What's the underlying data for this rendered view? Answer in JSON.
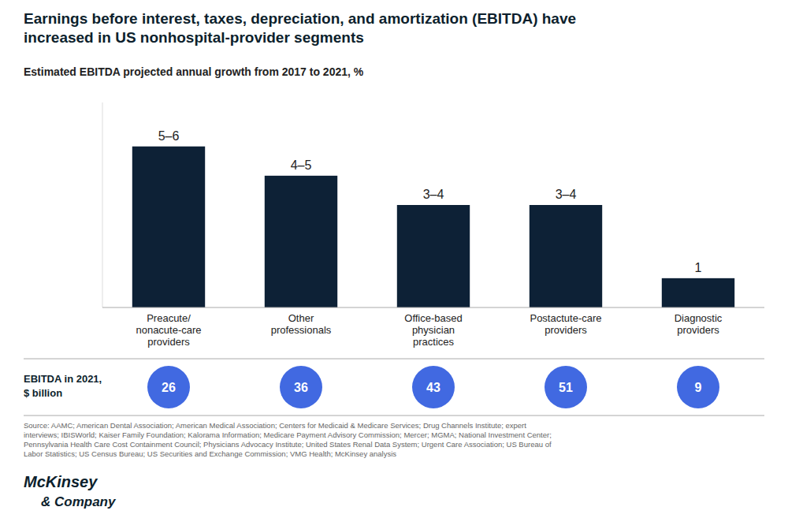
{
  "chart_data": {
    "type": "bar",
    "title": "Earnings before interest, taxes, depreciation, and amortization (EBITDA) have\nincreased in US nonhospital-provider segments",
    "subtitle": "Estimated EBITDA projected annual growth from 2017 to 2021, %",
    "categories": [
      "Preacute/\nnonacute-care\nproviders",
      "Other\nprofessionals",
      "Office-based\nphysician\npractices",
      "Postactute-care\nproviders",
      "Diagnostic\nproviders"
    ],
    "values": [
      5.5,
      4.5,
      3.5,
      3.5,
      1.0
    ],
    "value_labels": [
      "5–6",
      "4–5",
      "3–4",
      "3–4",
      "1"
    ],
    "data_labels": true,
    "color": "#0d2136",
    "ylim": [
      0,
      7
    ],
    "tick_labels": "x",
    "grid": false,
    "ebitda_label": "EBITDA in 2021,\n$ billion",
    "ebitda_values": [
      26,
      36,
      43,
      51,
      9
    ],
    "ebitda_color": "#4169e1",
    "source": "Source: AAMC; American Dental Association; American Medical Association; Centers for Medicaid & Medicare Services; Drug Channels Institute; expert\ninterviews; IBISWorld; Kaiser Family Foundation; Kalorama Information; Medicare Payment Advisory Commission; Mercer; MGMA; National Investment Center;\nPennsylvania Health Care Cost Containment Council; Physicians Advocacy Institute; United States Renal Data System; Urgent Care Association; US Bureau of\nLabor Statistics; US Census Bureau; US Securities and Exchange Commission; VMG Health; McKinsey analysis",
    "logo": [
      "McKinsey",
      "& Company"
    ]
  }
}
